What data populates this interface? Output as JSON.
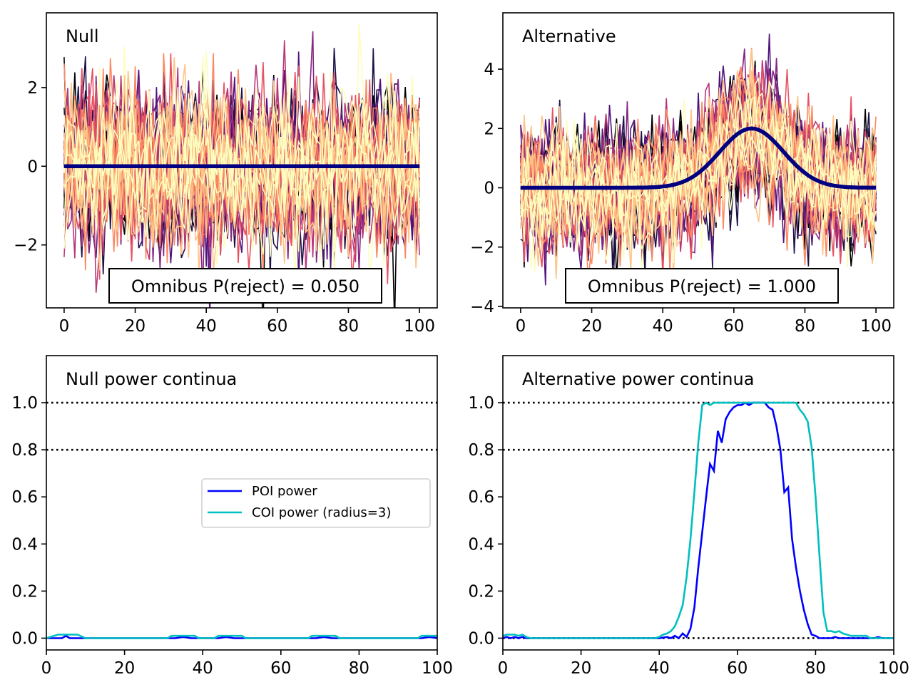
{
  "colors": {
    "mean_line": "#000080",
    "poi": "#0000ff",
    "coi": "#00bfbf",
    "reference": "#000000",
    "trace_palette": [
      "#000004",
      "#1d1147",
      "#51127c",
      "#822681",
      "#b73779",
      "#e75263",
      "#fc8961",
      "#fec488",
      "#fcfdbf"
    ]
  },
  "chart_data": [
    {
      "type": "line",
      "panel": "null-data",
      "title": "Null",
      "xlim": [
        -5,
        105
      ],
      "ylim": [
        -3.6,
        3.9
      ],
      "xticks": [
        0,
        20,
        40,
        60,
        80,
        100
      ],
      "yticks": [
        -2,
        0,
        2
      ],
      "grid": false,
      "n_traces": 50,
      "trace_sd": 1.0,
      "series": [
        {
          "name": "",
          "x": [
            0,
            100
          ],
          "y": [
            0,
            0
          ]
        }
      ],
      "annotation": "Omnibus P(reject) = 0.050"
    },
    {
      "type": "line",
      "panel": "alt-data",
      "title": "Alternative",
      "xlim": [
        -5,
        105
      ],
      "ylim": [
        -4.05,
        5.9
      ],
      "xticks": [
        0,
        20,
        40,
        60,
        80,
        100
      ],
      "yticks": [
        -4,
        -2,
        0,
        2,
        4
      ],
      "grid": false,
      "n_traces": 50,
      "trace_sd": 1.0,
      "signal": {
        "amplitude": 2,
        "center": 65,
        "sigma": 9
      },
      "annotation": "Omnibus P(reject) = 1.000"
    },
    {
      "type": "line",
      "panel": "null-power",
      "title": "Null power continua",
      "xlim": [
        0,
        100
      ],
      "ylim": [
        -0.05,
        1.2
      ],
      "xticks": [
        0,
        20,
        40,
        60,
        80,
        100
      ],
      "yticks": [
        0.0,
        0.2,
        0.4,
        0.6,
        0.8,
        1.0
      ],
      "ytick_labels": [
        "0.0",
        "0.2",
        "0.4",
        "0.6",
        "0.8",
        "1.0"
      ],
      "reference_lines": [
        0.8,
        1.0
      ],
      "grid": false,
      "legend": {
        "position": "center-right",
        "entries": [
          "POI power",
          "COI power (radius=3)"
        ]
      },
      "series": [
        {
          "name": "POI power",
          "x": [
            0,
            2,
            4,
            5,
            6,
            8,
            10,
            20,
            30,
            33,
            35,
            37,
            40,
            44,
            46,
            48,
            50,
            60,
            69,
            71,
            73,
            80,
            96,
            98,
            100
          ],
          "y": [
            0,
            0,
            0,
            0.01,
            0,
            0,
            0,
            0,
            0,
            0,
            0.005,
            0,
            0,
            0,
            0.005,
            0,
            0,
            0,
            0,
            0.005,
            0,
            0,
            0,
            0.005,
            0
          ]
        },
        {
          "name": "COI power (radius=3)",
          "x": [
            0,
            1,
            3,
            8,
            10,
            20,
            31,
            32,
            38,
            39,
            43,
            44,
            50,
            51,
            67,
            68,
            74,
            75,
            95,
            96,
            100
          ],
          "y": [
            0,
            0.005,
            0.015,
            0.015,
            0,
            0,
            0,
            0.01,
            0.01,
            0,
            0,
            0.01,
            0.01,
            0,
            0,
            0.01,
            0.01,
            0,
            0,
            0.01,
            0.01
          ]
        }
      ]
    },
    {
      "type": "line",
      "panel": "alt-power",
      "title": "Alternative power continua",
      "xlim": [
        0,
        100
      ],
      "ylim": [
        -0.05,
        1.2
      ],
      "xticks": [
        0,
        20,
        40,
        60,
        80,
        100
      ],
      "yticks": [
        0.0,
        0.2,
        0.4,
        0.6,
        0.8,
        1.0
      ],
      "ytick_labels": [
        "0.0",
        "0.2",
        "0.4",
        "0.6",
        "0.8",
        "1.0"
      ],
      "reference_lines": [
        0.0,
        0.8,
        1.0
      ],
      "grid": false,
      "series": [
        {
          "name": "POI power",
          "x": [
            0,
            1,
            2,
            3,
            4,
            5,
            6,
            8,
            10,
            20,
            30,
            40,
            42,
            43,
            44,
            45,
            46,
            47,
            48,
            49,
            50,
            51,
            52,
            53,
            54,
            55,
            56,
            57,
            58,
            59,
            60,
            61,
            62,
            63,
            64,
            65,
            66,
            67,
            68,
            69,
            70,
            71,
            72,
            73,
            74,
            75,
            76,
            77,
            78,
            79,
            80,
            81,
            82,
            83,
            84,
            85,
            86,
            88,
            90,
            92,
            95,
            96,
            97,
            100
          ],
          "y": [
            0,
            0.005,
            0,
            0.005,
            0,
            0.005,
            0,
            0,
            0,
            0,
            0,
            0,
            0.005,
            0,
            0.01,
            0,
            0.02,
            0.005,
            0.04,
            0.13,
            0.3,
            0.45,
            0.6,
            0.74,
            0.71,
            0.88,
            0.83,
            0.93,
            0.96,
            0.98,
            0.99,
            0.99,
            1.0,
            0.99,
            1.0,
            1.0,
            1.0,
            1.0,
            0.98,
            0.97,
            0.9,
            0.8,
            0.62,
            0.64,
            0.42,
            0.3,
            0.2,
            0.12,
            0.06,
            0.015,
            0.01,
            0,
            0,
            0,
            0,
            0.005,
            0,
            0,
            0,
            0,
            0,
            0.005,
            0,
            0
          ]
        },
        {
          "name": "COI power (radius=3)",
          "x": [
            0,
            1,
            3,
            4,
            5,
            6,
            7,
            10,
            20,
            30,
            39,
            40,
            41,
            42,
            43,
            44,
            45,
            46,
            47,
            48,
            49,
            50,
            51,
            52,
            53,
            54,
            55,
            56,
            60,
            70,
            75,
            76,
            77,
            78,
            79,
            80,
            81,
            82,
            83,
            84,
            85,
            86,
            87,
            88,
            89,
            90,
            91,
            92,
            93,
            94,
            96,
            100
          ],
          "y": [
            0.01,
            0.015,
            0.015,
            0.01,
            0.015,
            0.005,
            0,
            0,
            0,
            0,
            0,
            0.005,
            0.015,
            0.02,
            0.03,
            0.05,
            0.09,
            0.14,
            0.26,
            0.42,
            0.62,
            0.83,
            0.99,
            1.0,
            0.99,
            1.0,
            1.0,
            1.0,
            1.0,
            1.0,
            1.0,
            0.97,
            0.95,
            0.92,
            0.81,
            0.6,
            0.35,
            0.11,
            0.03,
            0.03,
            0.025,
            0.03,
            0.02,
            0.015,
            0.01,
            0.01,
            0.01,
            0.01,
            0.01,
            0,
            0,
            0
          ]
        }
      ]
    }
  ]
}
